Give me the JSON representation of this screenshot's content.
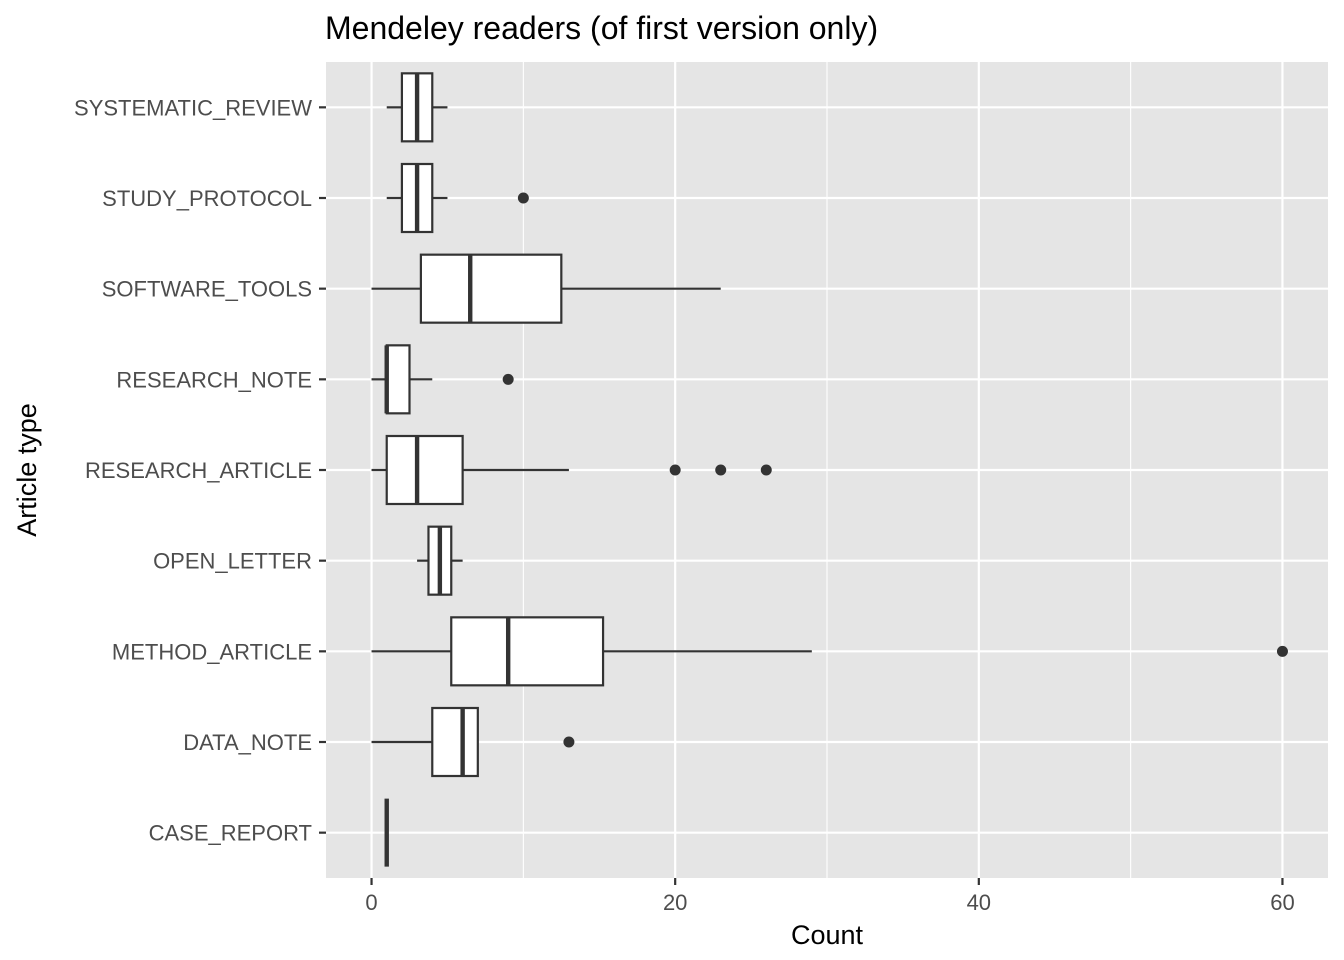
{
  "chart_data": {
    "type": "boxplot",
    "orientation": "horizontal",
    "title": "Mendeley readers (of first version only)",
    "xlabel": "Count",
    "ylabel": "Article type",
    "xlim": [
      -3,
      63
    ],
    "xticks": [
      0,
      20,
      40,
      60
    ],
    "xtick_labels": [
      "0",
      "20",
      "40",
      "60"
    ],
    "grid": true,
    "legend": "none",
    "colors": {
      "panel": "#e5e5e5",
      "grid": "#ffffff",
      "box_fill": "#ffffff",
      "box_line": "#333333",
      "outlier": "#333333"
    },
    "categories": [
      "SYSTEMATIC_REVIEW",
      "STUDY_PROTOCOL",
      "SOFTWARE_TOOLS",
      "RESEARCH_NOTE",
      "RESEARCH_ARTICLE",
      "OPEN_LETTER",
      "METHOD_ARTICLE",
      "DATA_NOTE",
      "CASE_REPORT"
    ],
    "boxes": [
      {
        "category": "SYSTEMATIC_REVIEW",
        "min": 1,
        "q1": 2,
        "median": 3,
        "q3": 4,
        "max": 5,
        "outliers": []
      },
      {
        "category": "STUDY_PROTOCOL",
        "min": 1,
        "q1": 2,
        "median": 3,
        "q3": 4,
        "max": 5,
        "outliers": [
          10
        ]
      },
      {
        "category": "SOFTWARE_TOOLS",
        "min": 0,
        "q1": 3.25,
        "median": 6.5,
        "q3": 12.5,
        "max": 23,
        "outliers": []
      },
      {
        "category": "RESEARCH_NOTE",
        "min": 0,
        "q1": 1,
        "median": 1,
        "q3": 2.5,
        "max": 4,
        "outliers": [
          9
        ]
      },
      {
        "category": "RESEARCH_ARTICLE",
        "min": 0,
        "q1": 1,
        "median": 3,
        "q3": 6,
        "max": 13,
        "outliers": [
          20,
          23,
          26
        ]
      },
      {
        "category": "OPEN_LETTER",
        "min": 3,
        "q1": 3.75,
        "median": 4.5,
        "q3": 5.25,
        "max": 6,
        "outliers": []
      },
      {
        "category": "METHOD_ARTICLE",
        "min": 0,
        "q1": 5.25,
        "median": 9,
        "q3": 15.25,
        "max": 29,
        "outliers": [
          60
        ]
      },
      {
        "category": "DATA_NOTE",
        "min": 0,
        "q1": 4,
        "median": 6,
        "q3": 7,
        "max": 7,
        "outliers": [
          13
        ]
      },
      {
        "category": "CASE_REPORT",
        "min": 1,
        "q1": 1,
        "median": 1,
        "q3": 1,
        "max": 1,
        "outliers": []
      }
    ]
  }
}
